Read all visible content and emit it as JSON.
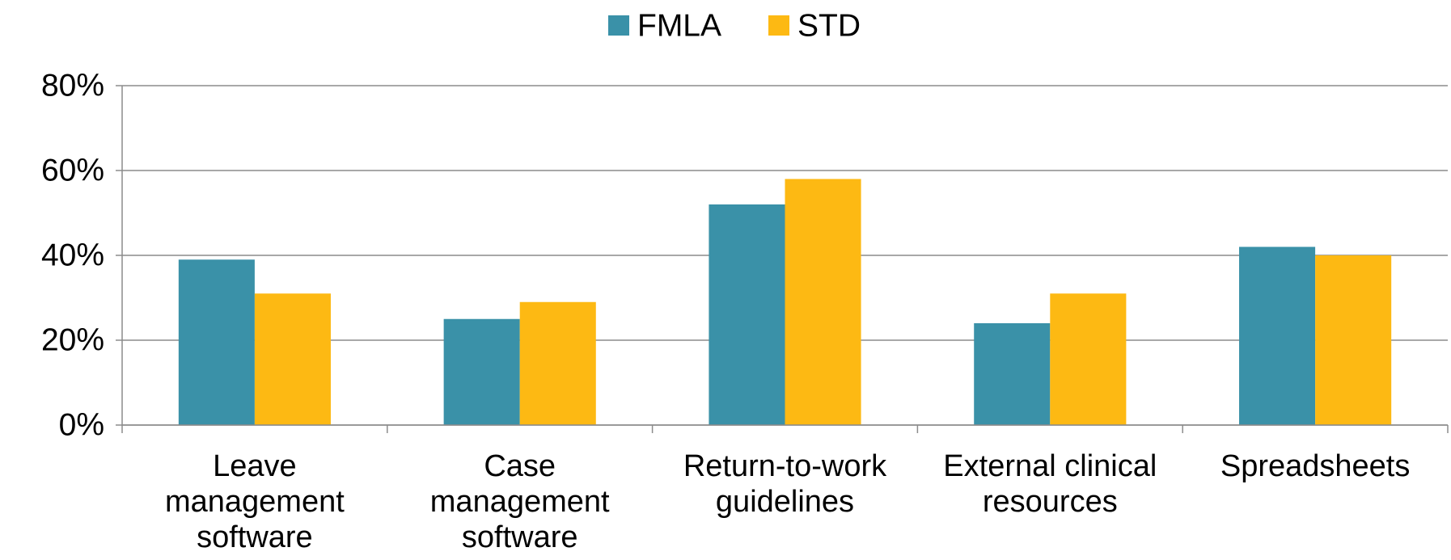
{
  "chart_data": {
    "type": "bar",
    "categories": [
      "Leave management software",
      "Case management software",
      "Return-to-work guidelines",
      "External clinical resources",
      "Spreadsheets"
    ],
    "series": [
      {
        "name": "FMLA",
        "color": "#3a91a8",
        "values": [
          39,
          25,
          52,
          24,
          42
        ]
      },
      {
        "name": "STD",
        "color": "#fdb913",
        "values": [
          31,
          29,
          58,
          31,
          40
        ]
      }
    ],
    "ylim": [
      0,
      80
    ],
    "yticks": [
      {
        "value": 0,
        "label": "0%"
      },
      {
        "value": 20,
        "label": "20%"
      },
      {
        "value": 40,
        "label": "40%"
      },
      {
        "value": 60,
        "label": "60%"
      },
      {
        "value": 80,
        "label": "80%"
      }
    ],
    "grid": true,
    "legend": "top"
  }
}
